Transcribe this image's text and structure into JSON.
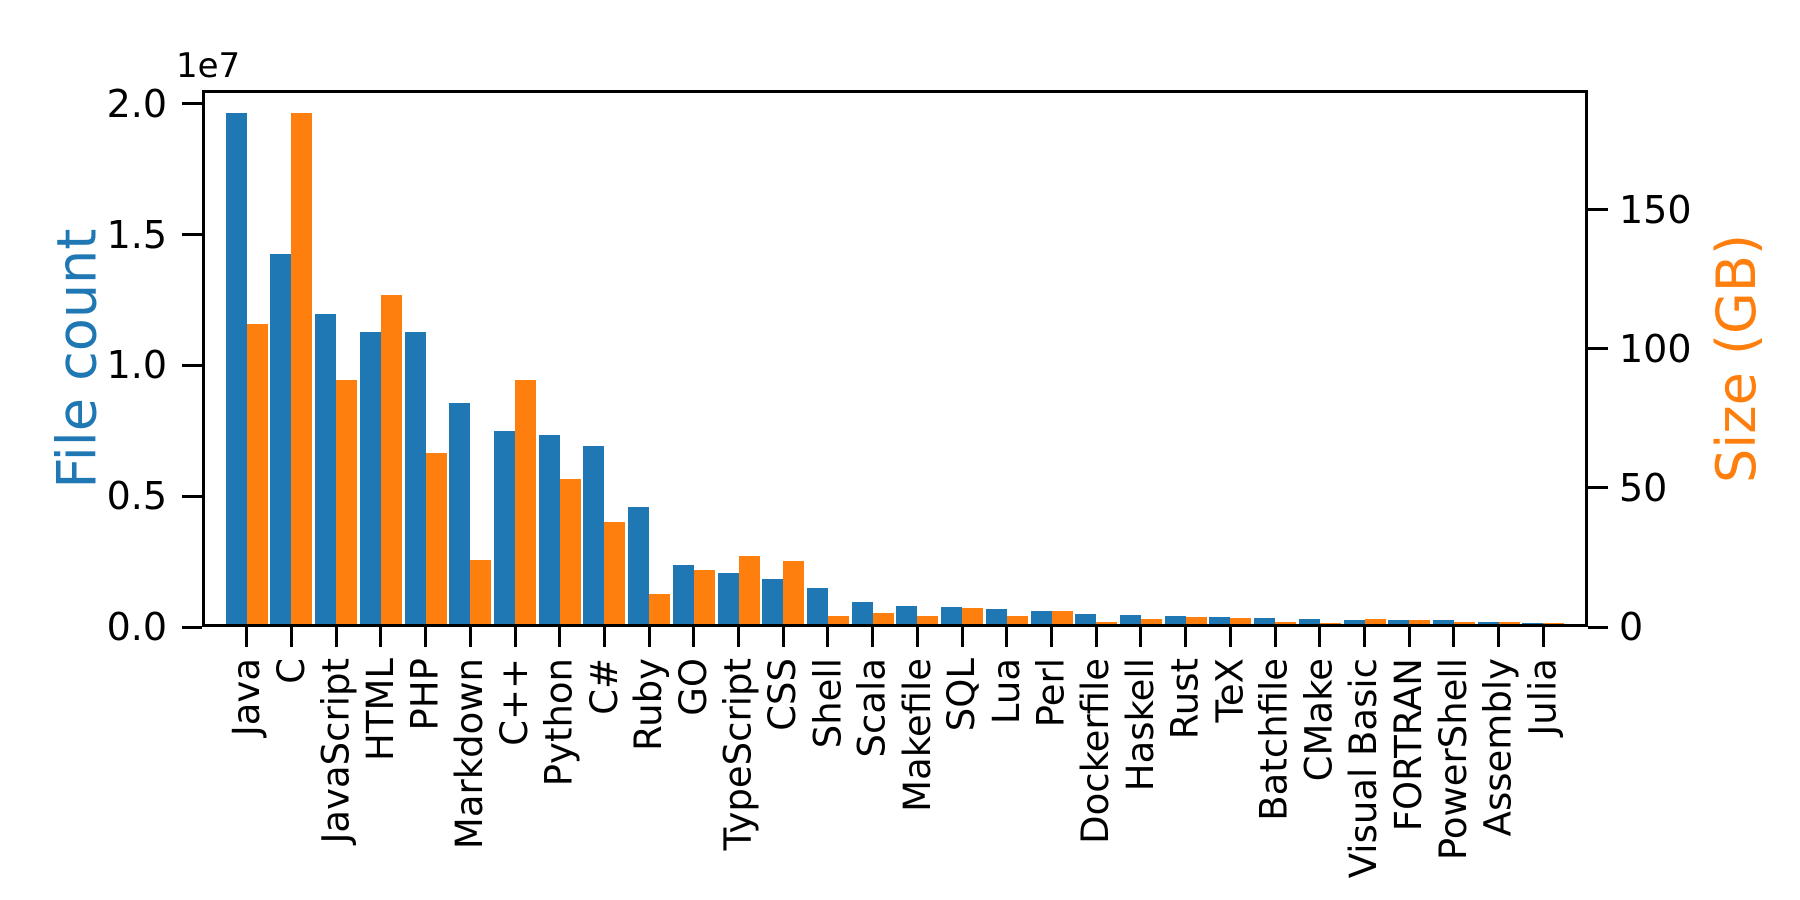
{
  "chart_data": {
    "type": "bar",
    "title": "",
    "categories": [
      "Java",
      "C",
      "JavaScript",
      "HTML",
      "PHP",
      "Markdown",
      "C++",
      "Python",
      "C#",
      "Ruby",
      "GO",
      "TypeScript",
      "CSS",
      "Shell",
      "Scala",
      "Makefile",
      "SQL",
      "Lua",
      "Perl",
      "Dockerfile",
      "Haskell",
      "Rust",
      "TeX",
      "Batchfile",
      "CMake",
      "Visual Basic",
      "FORTRAN",
      "PowerShell",
      "Assembly",
      "Julia"
    ],
    "series": [
      {
        "name": "File count",
        "axis": "left",
        "color": "#1f77b4",
        "values": [
          19548190,
          14143113,
          11839883,
          11178557,
          11177610,
          8464626,
          7380520,
          7226626,
          6811652,
          4473331,
          2265436,
          1940406,
          1734406,
          1385648,
          835755,
          679430,
          656671,
          578554,
          497949,
          366505,
          340240,
          322431,
          251015,
          236945,
          175282,
          155652,
          142038,
          136846,
          82905,
          58317
        ]
      },
      {
        "name": "Size (GB)",
        "axis": "right",
        "color": "#ff7f0e",
        "values": [
          107.7,
          183.83,
          87.82,
          118.12,
          61.41,
          23.09,
          87.73,
          52.03,
          36.83,
          10.95,
          19.28,
          24.59,
          22.67,
          3.01,
          3.87,
          2.92,
          5.67,
          2.81,
          4.7,
          0.71,
          1.85,
          2.68,
          2.15,
          0.7,
          0.54,
          1.91,
          1.62,
          0.69,
          0.78,
          0.29
        ]
      }
    ],
    "left_axis": {
      "label": "File count",
      "label_color": "#1f77b4",
      "offset_text": "1e7",
      "tick_labels": [
        "0.0",
        "0.5",
        "1.0",
        "1.5",
        "2.0"
      ],
      "tick_values": [
        0,
        5000000,
        10000000,
        15000000,
        20000000
      ],
      "ylim": [
        0,
        20525600
      ]
    },
    "right_axis": {
      "label": "Size (GB)",
      "label_color": "#ff7f0e",
      "tick_labels": [
        "0",
        "50",
        "100",
        "150"
      ],
      "tick_values": [
        0,
        50,
        100,
        150
      ],
      "ylim": [
        0,
        193.02
      ]
    },
    "x_tick_rotation_deg": 90,
    "bar_width_fraction": 0.47,
    "grid": false,
    "legend": null,
    "tick_color": "#000000",
    "background": "#ffffff"
  }
}
